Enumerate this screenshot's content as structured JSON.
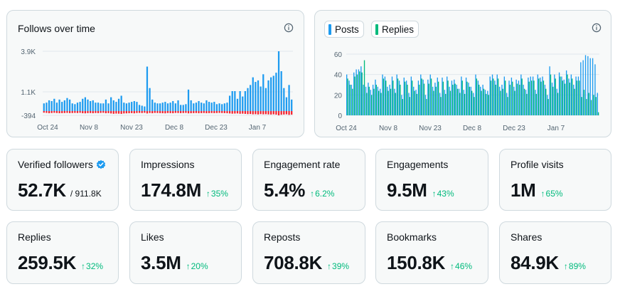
{
  "follows_card": {
    "title": "Follows over time",
    "icon": "info-icon"
  },
  "posts_card": {
    "legend": [
      {
        "label": "Posts",
        "color": "#1d9bf0"
      },
      {
        "label": "Replies",
        "color": "#00ba7c"
      }
    ],
    "icon": "info-icon"
  },
  "chart_data": [
    {
      "type": "bar",
      "title": "Follows over time",
      "x_ticks": [
        "Oct 24",
        "Nov 8",
        "Nov 23",
        "Dec 8",
        "Dec 23",
        "Jan 7"
      ],
      "y_ticks": [
        "3.9K",
        "1.1K",
        "-394"
      ],
      "ylim": [
        -394,
        3900
      ],
      "grid": true,
      "series": [
        {
          "color": "#1d9bf0",
          "values": [
            500,
            550,
            700,
            650,
            800,
            550,
            750,
            600,
            700,
            850,
            750,
            500,
            450,
            550,
            600,
            800,
            900,
            750,
            650,
            700,
            550,
            550,
            500,
            500,
            750,
            500,
            900,
            700,
            600,
            800,
            1000,
            550,
            500,
            550,
            600,
            650,
            600,
            400,
            350,
            300,
            2900,
            1500,
            750,
            550,
            500,
            500,
            550,
            600,
            500,
            550,
            650,
            500,
            700,
            400,
            400,
            450,
            1400,
            700,
            500,
            550,
            650,
            550,
            500,
            700,
            600,
            550,
            600,
            450,
            500,
            450,
            500,
            550,
            1000,
            1300,
            1300,
            800,
            1300,
            950,
            1300,
            1500,
            1700,
            2200,
            1900,
            2000,
            1600,
            2400,
            1500,
            2000,
            2200,
            2300,
            2500,
            3900,
            2600,
            1500,
            900,
            1700,
            750
          ]
        },
        {
          "color": "#f4212e",
          "values": [
            -150,
            -170,
            -200,
            -180,
            -160,
            -180,
            -200,
            -190,
            -180,
            -170,
            -190,
            -180,
            -170,
            -180,
            -160,
            -200,
            -210,
            -190,
            -180,
            -200,
            -180,
            -190,
            -170,
            -160,
            -200,
            -190,
            -220,
            -250,
            -230,
            -240,
            -260,
            -220,
            -210,
            -200,
            -190,
            -210,
            -180,
            -170,
            -180,
            -160,
            -220,
            -180,
            -200,
            -170,
            -180,
            -190,
            -200,
            -210,
            -180,
            -190,
            -200,
            -170,
            -180,
            -190,
            -180,
            -170,
            -210,
            -200,
            -190,
            -180,
            -200,
            -190,
            -180,
            -200,
            -190,
            -180,
            -190,
            -180,
            -170,
            -180,
            -190,
            -200,
            -220,
            -240,
            -230,
            -220,
            -250,
            -240,
            -260,
            -280,
            -270,
            -300,
            -290,
            -310,
            -280,
            -300,
            -290,
            -310,
            -320,
            -300,
            -330,
            -394,
            -340,
            -320,
            -300,
            -350,
            -330
          ]
        }
      ]
    },
    {
      "type": "bar",
      "title": "",
      "x_ticks": [
        "Oct 24",
        "Nov 8",
        "Nov 23",
        "Dec 8",
        "Dec 23",
        "Jan 7"
      ],
      "y_ticks": [
        60,
        40,
        20,
        0
      ],
      "ylim": [
        0,
        60
      ],
      "legend": "top-left",
      "grid": true,
      "series": [
        {
          "name": "Posts",
          "color": "#1d9bf0",
          "values": [
            40,
            34,
            30,
            42,
            45,
            45,
            48,
            30,
            28,
            32,
            25,
            30,
            35,
            28,
            26,
            40,
            38,
            28,
            30,
            38,
            26,
            40,
            34,
            20,
            37,
            34,
            22,
            38,
            28,
            25,
            34,
            40,
            35,
            20,
            35,
            40,
            28,
            32,
            37,
            22,
            37,
            25,
            38,
            28,
            34,
            35,
            30,
            26,
            38,
            25,
            37,
            32,
            28,
            22,
            40,
            34,
            28,
            30,
            25,
            24,
            38,
            40,
            34,
            40,
            28,
            30,
            38,
            22,
            34,
            37,
            28,
            35,
            34,
            40,
            30,
            25,
            37,
            38,
            38,
            25,
            40,
            37,
            38,
            30,
            20,
            48,
            32,
            40,
            26,
            42,
            38,
            35,
            44,
            36,
            40,
            30,
            38,
            38,
            52,
            54,
            59,
            58,
            56,
            56,
            50,
            22
          ]
        },
        {
          "name": "Replies",
          "color": "#00ba7c",
          "values": [
            36,
            30,
            26,
            38,
            40,
            43,
            42,
            54,
            22,
            28,
            20,
            26,
            30,
            24,
            22,
            36,
            34,
            24,
            26,
            34,
            22,
            36,
            30,
            16,
            33,
            30,
            18,
            34,
            24,
            21,
            30,
            36,
            31,
            16,
            31,
            36,
            24,
            28,
            33,
            18,
            33,
            21,
            34,
            24,
            30,
            31,
            26,
            22,
            34,
            21,
            33,
            28,
            24,
            18,
            36,
            30,
            24,
            26,
            21,
            20,
            34,
            36,
            30,
            36,
            24,
            26,
            34,
            18,
            30,
            33,
            24,
            31,
            30,
            36,
            26,
            21,
            33,
            34,
            34,
            21,
            36,
            33,
            34,
            26,
            16,
            40,
            28,
            36,
            22,
            38,
            34,
            31,
            40,
            32,
            36,
            26,
            34,
            34,
            18,
            25,
            16,
            22,
            15,
            20,
            18,
            3
          ]
        }
      ]
    }
  ],
  "stats": [
    {
      "label": "Verified followers",
      "value": "52.7K",
      "sub": "/ 911.8K",
      "verified_icon": "verified-badge-icon"
    },
    {
      "label": "Impressions",
      "value": "174.8M",
      "delta": "35%"
    },
    {
      "label": "Engagement rate",
      "value": "5.4%",
      "delta": "6.2%"
    },
    {
      "label": "Engagements",
      "value": "9.5M",
      "delta": "43%"
    },
    {
      "label": "Profile visits",
      "value": "1M",
      "delta": "65%"
    },
    {
      "label": "Replies",
      "value": "259.5K",
      "delta": "32%"
    },
    {
      "label": "Likes",
      "value": "3.5M",
      "delta": "20%"
    },
    {
      "label": "Reposts",
      "value": "708.8K",
      "delta": "39%"
    },
    {
      "label": "Bookmarks",
      "value": "150.8K",
      "delta": "46%"
    },
    {
      "label": "Shares",
      "value": "84.9K",
      "delta": "89%"
    }
  ]
}
